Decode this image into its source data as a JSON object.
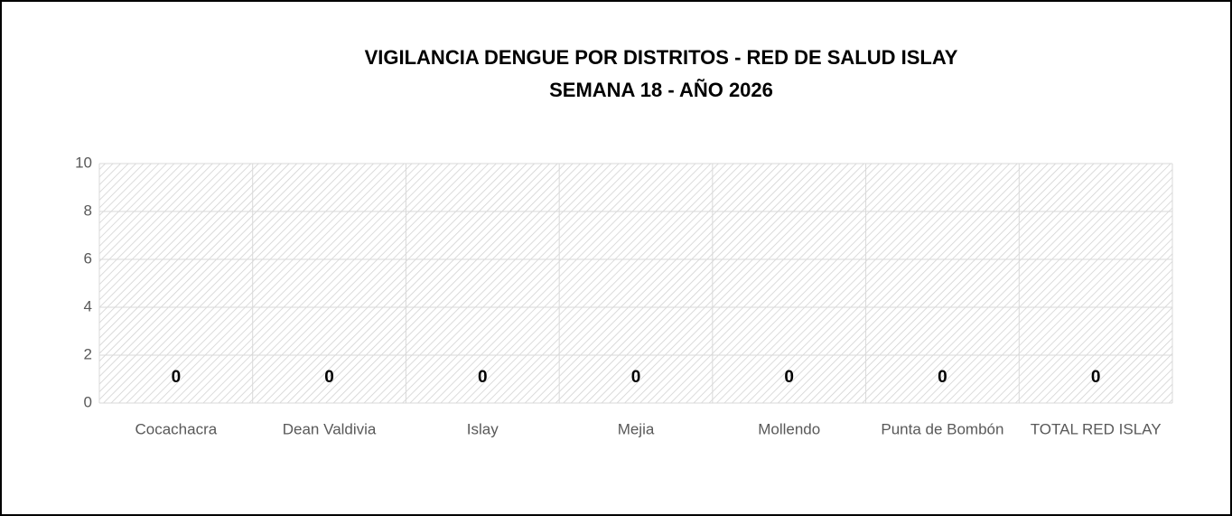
{
  "chart_data": {
    "type": "bar",
    "title": [
      "VIGILANCIA DENGUE POR DISTRITOS  - RED DE SALUD ISLAY",
      "SEMANA  18 -  AÑO 2026"
    ],
    "categories": [
      "Cocachacra",
      "Dean Valdivia",
      "Islay",
      "Mejia",
      "Mollendo",
      "Punta de Bombón",
      "TOTAL RED ISLAY"
    ],
    "values": [
      0,
      0,
      0,
      0,
      0,
      0,
      0
    ],
    "color": "#4472c4",
    "ylim": [
      0,
      10
    ],
    "yticks": [
      0,
      2,
      4,
      6,
      8,
      10
    ],
    "grid": true
  }
}
